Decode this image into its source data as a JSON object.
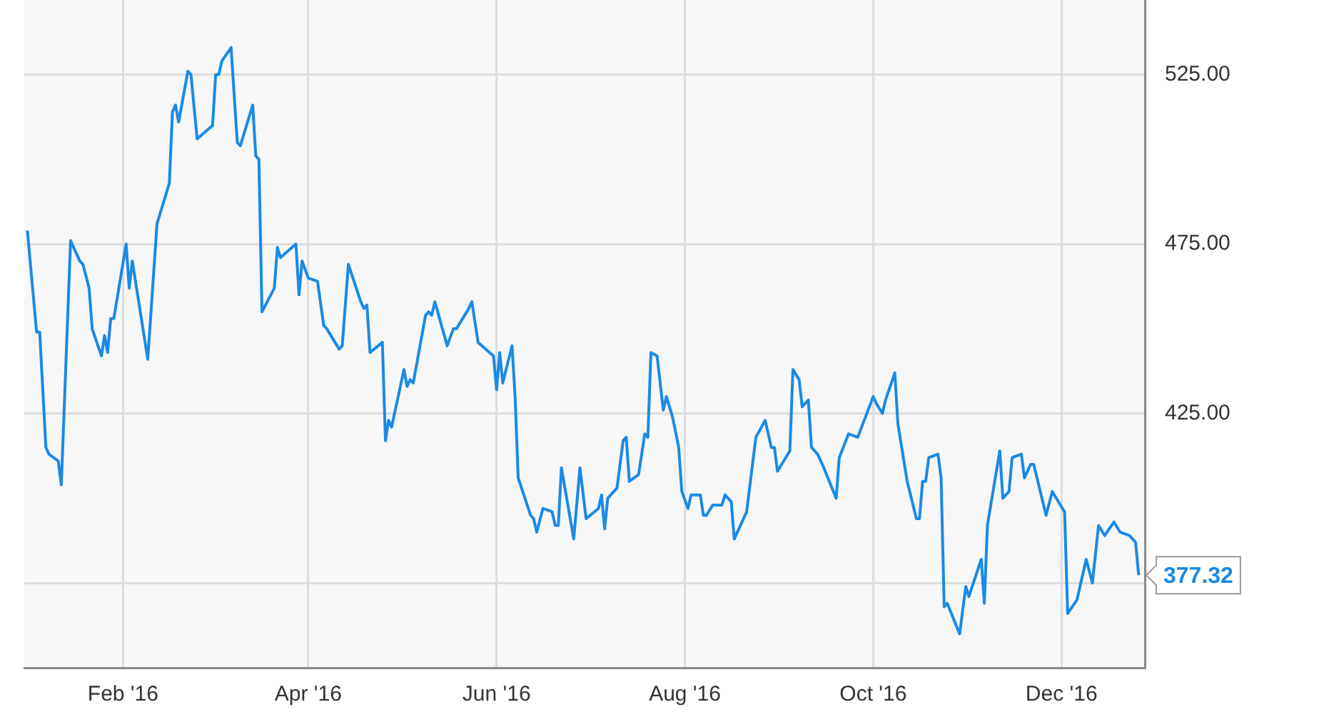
{
  "chart_data": {
    "type": "line",
    "xlim": [
      "2015-12-31",
      "2016-12-28"
    ],
    "xticks": [
      {
        "value": "2016-02-01",
        "label": "Feb '16"
      },
      {
        "value": "2016-04-01",
        "label": "Apr '16"
      },
      {
        "value": "2016-06-01",
        "label": "Jun '16"
      },
      {
        "value": "2016-08-01",
        "label": "Aug '16"
      },
      {
        "value": "2016-10-01",
        "label": "Oct '16"
      },
      {
        "value": "2016-12-01",
        "label": "Dec '16"
      }
    ],
    "ylim": [
      350,
      547
    ],
    "yticks": [
      {
        "value": 375,
        "label": null
      },
      {
        "value": 425,
        "label": "425.00"
      },
      {
        "value": 475,
        "label": "475.00"
      },
      {
        "value": 525,
        "label": "525.00"
      }
    ],
    "grid": true,
    "marker": "none",
    "annotations": [
      {
        "text": "377.32",
        "x": "2016-12-26",
        "y": 377.32
      }
    ],
    "series": [
      {
        "color": "#1a8ae6",
        "x": [
          "2016-01-01",
          "2016-01-04",
          "2016-01-05",
          "2016-01-07",
          "2016-01-08",
          "2016-01-11",
          "2016-01-12",
          "2016-01-15",
          "2016-01-18",
          "2016-01-19",
          "2016-01-21",
          "2016-01-22",
          "2016-01-25",
          "2016-01-26",
          "2016-01-27",
          "2016-01-28",
          "2016-01-29",
          "2016-02-02",
          "2016-02-03",
          "2016-02-04",
          "2016-02-09",
          "2016-02-12",
          "2016-02-16",
          "2016-02-17",
          "2016-02-18",
          "2016-02-19",
          "2016-02-22",
          "2016-02-23",
          "2016-02-25",
          "2016-03-01",
          "2016-03-02",
          "2016-03-03",
          "2016-03-04",
          "2016-03-07",
          "2016-03-09",
          "2016-03-10",
          "2016-03-14",
          "2016-03-15",
          "2016-03-16",
          "2016-03-17",
          "2016-03-21",
          "2016-03-22",
          "2016-03-23",
          "2016-03-28",
          "2016-03-29",
          "2016-03-30",
          "2016-04-01",
          "2016-04-04",
          "2016-04-06",
          "2016-04-07",
          "2016-04-11",
          "2016-04-12",
          "2016-04-14",
          "2016-04-18",
          "2016-04-19",
          "2016-04-20",
          "2016-04-21",
          "2016-04-25",
          "2016-04-26",
          "2016-04-27",
          "2016-04-28",
          "2016-05-02",
          "2016-05-03",
          "2016-05-04",
          "2016-05-05",
          "2016-05-09",
          "2016-05-10",
          "2016-05-11",
          "2016-05-12",
          "2016-05-16",
          "2016-05-18",
          "2016-05-19",
          "2016-05-23",
          "2016-05-24",
          "2016-05-26",
          "2016-05-31",
          "2016-06-01",
          "2016-06-02",
          "2016-06-03",
          "2016-06-06",
          "2016-06-07",
          "2016-06-08",
          "2016-06-12",
          "2016-06-13",
          "2016-06-14",
          "2016-06-16",
          "2016-06-19",
          "2016-06-20",
          "2016-06-21",
          "2016-06-22",
          "2016-06-26",
          "2016-06-28",
          "2016-06-30",
          "2016-07-04",
          "2016-07-05",
          "2016-07-06",
          "2016-07-07",
          "2016-07-10",
          "2016-07-12",
          "2016-07-13",
          "2016-07-14",
          "2016-07-17",
          "2016-07-19",
          "2016-07-20",
          "2016-07-21",
          "2016-07-23",
          "2016-07-25",
          "2016-07-26",
          "2016-07-28",
          "2016-07-30",
          "2016-07-31",
          "2016-08-02",
          "2016-08-03",
          "2016-08-06",
          "2016-08-07",
          "2016-08-08",
          "2016-08-10",
          "2016-08-13",
          "2016-08-14",
          "2016-08-16",
          "2016-08-17",
          "2016-08-21",
          "2016-08-24",
          "2016-08-27",
          "2016-08-29",
          "2016-08-30",
          "2016-08-31",
          "2016-09-04",
          "2016-09-05",
          "2016-09-07",
          "2016-09-08",
          "2016-09-10",
          "2016-09-11",
          "2016-09-13",
          "2016-09-15",
          "2016-09-19",
          "2016-09-20",
          "2016-09-23",
          "2016-09-26",
          "2016-10-01",
          "2016-10-02",
          "2016-10-04",
          "2016-10-05",
          "2016-10-08",
          "2016-10-09",
          "2016-10-12",
          "2016-10-15",
          "2016-10-16",
          "2016-10-17",
          "2016-10-18",
          "2016-10-19",
          "2016-10-22",
          "2016-10-23",
          "2016-10-24",
          "2016-10-25",
          "2016-10-29",
          "2016-10-31",
          "2016-11-01",
          "2016-11-05",
          "2016-11-06",
          "2016-11-07",
          "2016-11-11",
          "2016-11-12",
          "2016-11-14",
          "2016-11-15",
          "2016-11-18",
          "2016-11-19",
          "2016-11-21",
          "2016-11-22",
          "2016-11-26",
          "2016-11-28",
          "2016-12-02",
          "2016-12-03",
          "2016-12-06",
          "2016-12-09",
          "2016-12-11",
          "2016-12-13",
          "2016-12-15",
          "2016-12-18",
          "2016-12-20",
          "2016-12-23",
          "2016-12-25",
          "2016-12-26"
        ],
        "values": [
          479,
          449,
          449,
          415,
          413,
          411,
          404,
          476,
          470,
          469,
          462,
          450,
          442,
          448,
          443,
          453,
          453,
          475,
          462,
          470,
          441,
          481,
          493,
          514,
          516,
          511,
          526,
          525,
          506,
          510,
          525,
          525,
          529,
          533,
          505,
          504,
          516,
          501,
          500,
          455,
          462,
          474,
          471,
          475,
          460,
          470,
          465,
          464,
          451,
          450,
          444,
          445,
          469,
          458,
          456,
          457,
          443,
          446,
          417,
          423,
          421,
          438,
          433,
          435,
          434,
          454,
          455,
          454,
          458,
          445,
          450,
          450,
          456,
          458,
          446,
          442,
          432,
          443,
          434,
          445,
          430,
          406,
          395,
          394,
          390,
          397,
          396,
          392,
          392,
          409,
          388,
          409,
          394,
          397,
          401,
          391,
          400,
          403,
          417,
          418,
          405,
          407,
          419,
          418,
          443,
          442,
          426,
          430,
          424,
          415,
          402,
          397,
          401,
          401,
          395,
          395,
          398,
          398,
          401,
          399,
          388,
          396,
          418,
          423,
          415,
          415,
          408,
          414,
          438,
          435,
          427,
          429,
          415,
          413,
          409,
          400,
          412,
          419,
          418,
          430,
          428,
          425,
          429,
          437,
          422,
          405,
          394,
          394,
          405,
          405,
          412,
          413,
          406,
          368,
          369,
          360,
          374,
          371,
          382,
          369,
          392,
          414,
          400,
          402,
          412,
          413,
          406,
          410,
          410,
          395,
          402,
          396,
          366,
          370,
          382,
          375,
          392,
          389,
          393,
          390,
          389,
          387,
          377.32
        ]
      }
    ]
  }
}
